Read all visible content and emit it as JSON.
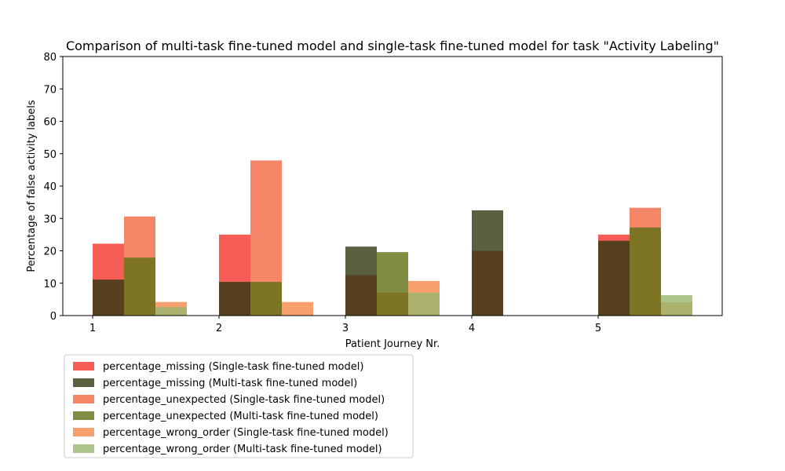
{
  "chart_data": {
    "type": "bar",
    "title": "Comparison of multi-task fine-tuned model and single-task fine-tuned model for task \"Activity Labeling\"",
    "xlabel": "Patient Journey Nr.",
    "ylabel": "Percentage of false activity labels",
    "categories": [
      "1",
      "2",
      "3",
      "4",
      "5"
    ],
    "ylim": [
      0,
      80
    ],
    "yticks": [
      0,
      10,
      20,
      30,
      40,
      50,
      60,
      70,
      80
    ],
    "grid": false,
    "legend_placement": "below-left",
    "series": [
      {
        "name": "percentage_missing (Single-task fine-tuned model)",
        "group": "missing",
        "color": "#f4413a",
        "opacity": 0.85,
        "values": [
          22.2,
          25.0,
          12.5,
          20.0,
          25.0
        ]
      },
      {
        "name": "percentage_missing (Multi-task fine-tuned model)",
        "group": "missing",
        "color": "#2f3a12",
        "opacity": 0.8,
        "values": [
          11.1,
          10.4,
          21.3,
          32.5,
          23.1
        ]
      },
      {
        "name": "percentage_unexpected (Single-task fine-tuned model)",
        "group": "unexpected",
        "color": "#f3714c",
        "opacity": 0.85,
        "values": [
          30.6,
          47.9,
          7.1,
          0,
          33.3
        ]
      },
      {
        "name": "percentage_unexpected (Multi-task fine-tuned model)",
        "group": "unexpected",
        "color": "#5f7014",
        "opacity": 0.8,
        "values": [
          17.9,
          10.4,
          19.6,
          0,
          27.2
        ]
      },
      {
        "name": "percentage_wrong_order (Single-task fine-tuned model)",
        "group": "wrong_order",
        "color": "#f5884a",
        "opacity": 0.8,
        "values": [
          4.2,
          4.2,
          10.7,
          0,
          4.1
        ]
      },
      {
        "name": "percentage_wrong_order (Multi-task fine-tuned model)",
        "group": "wrong_order",
        "color": "#96b76e",
        "opacity": 0.8,
        "values": [
          2.6,
          0,
          7.1,
          0,
          6.3
        ]
      }
    ]
  }
}
